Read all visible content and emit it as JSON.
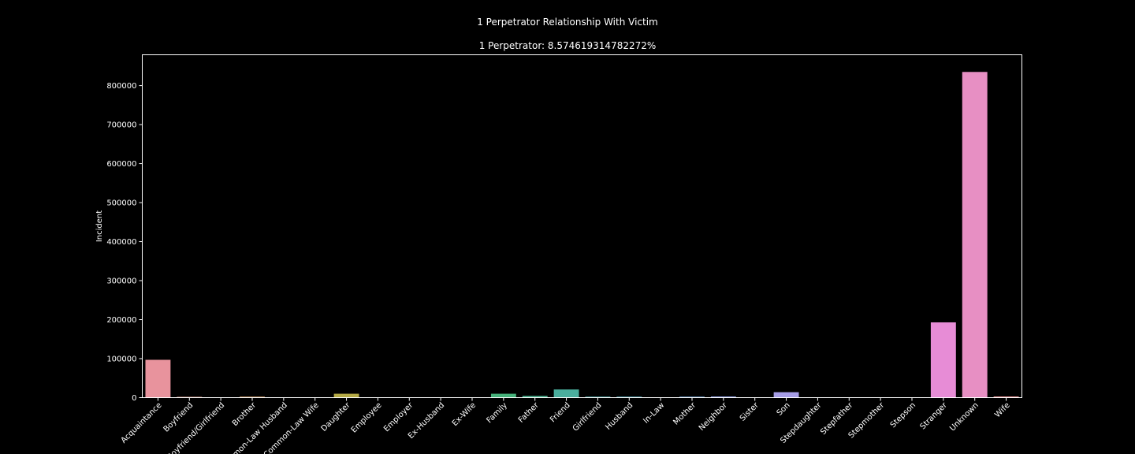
{
  "chart_data": {
    "type": "bar",
    "title": "1 Perpetrator Relationship With Victim",
    "subtitle": "1 Perpetrator: 8.574619314782272%",
    "xlabel": "",
    "ylabel": "Incident",
    "ylim": [
      0,
      879000
    ],
    "yticks": [
      0,
      100000,
      200000,
      300000,
      400000,
      500000,
      600000,
      700000,
      800000
    ],
    "grid": false,
    "background": "#000000",
    "categories": [
      "Acquaintance",
      "Boyfriend",
      "Boyfriend/Girlfriend",
      "Brother",
      "Common-Law Husband",
      "Common-Law Wife",
      "Daughter",
      "Employee",
      "Employer",
      "Ex-Husband",
      "Ex-Wife",
      "Family",
      "Father",
      "Friend",
      "Girlfriend",
      "Husband",
      "In-Law",
      "Mother",
      "Neighbor",
      "Sister",
      "Son",
      "Stepdaughter",
      "Stepfather",
      "Stepmother",
      "Stepson",
      "Stranger",
      "Unknown",
      "Wife"
    ],
    "values": [
      97000,
      2000,
      500,
      2500,
      500,
      500,
      10000,
      300,
      300,
      300,
      300,
      10000,
      4500,
      21000,
      2500,
      2500,
      500,
      2500,
      3000,
      300,
      14000,
      300,
      300,
      300,
      300,
      193000,
      835000,
      3000
    ],
    "colors": [
      "#e8939d",
      "#e59685",
      "#dc9874",
      "#d59c63",
      "#cba261",
      "#c1a752",
      "#b5aa45",
      "#a7ad4f",
      "#97b054",
      "#85b34e",
      "#5fb55e",
      "#46b27b",
      "#4ab08e",
      "#4aae9d",
      "#4bacaa",
      "#4ea9b8",
      "#55a4c4",
      "#6b9fd2",
      "#8b9ae0",
      "#a498e6",
      "#a79ee8",
      "#c092e3",
      "#d189de",
      "#de89d9",
      "#e68ad4",
      "#e78cd6",
      "#e78fc3",
      "#e99193"
    ]
  }
}
